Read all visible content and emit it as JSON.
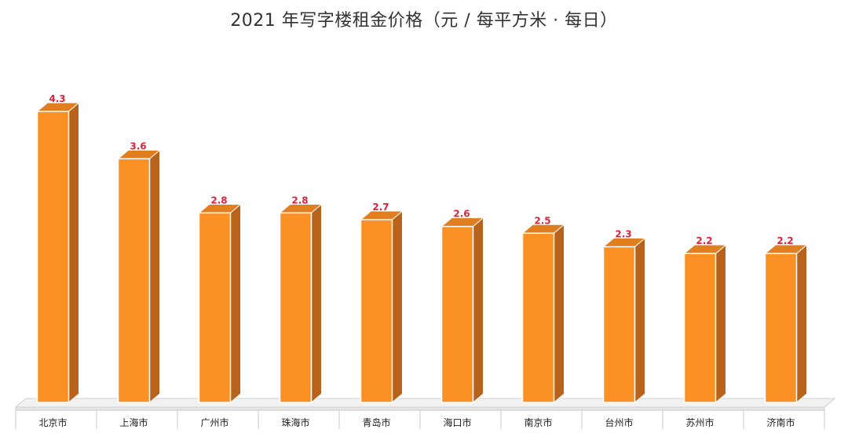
{
  "colors": {
    "bar_front": "#fb9025",
    "bar_side": "#b8621c",
    "bar_top": "#e07e20",
    "bar_edge": "#ffffff",
    "value_label": "#e0213a",
    "floor": "#f2f2f2"
  },
  "chart_data": {
    "type": "bar",
    "title": "2021 年写字楼租金价格（元 / 每平方米 · 每日）",
    "xlabel": "",
    "ylabel": "",
    "categories": [
      "北京市",
      "上海市",
      "广州市",
      "珠海市",
      "青岛市",
      "海口市",
      "南京市",
      "台州市",
      "苏州市",
      "济南市"
    ],
    "values": [
      4.3,
      3.6,
      2.8,
      2.8,
      2.7,
      2.6,
      2.5,
      2.3,
      2.2,
      2.2
    ],
    "value_labels": [
      "4.3",
      "3.6",
      "2.8",
      "2.8",
      "2.7",
      "2.6",
      "2.5",
      "2.3",
      "2.2",
      "2.2"
    ],
    "ylim": [
      0,
      4.3
    ],
    "grid": false,
    "legend": "none",
    "style": "3d-bar"
  }
}
